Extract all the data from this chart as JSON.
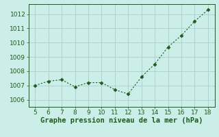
{
  "x": [
    5,
    6,
    7,
    8,
    9,
    10,
    11,
    12,
    13,
    14,
    15,
    16,
    17,
    18
  ],
  "y": [
    1007.0,
    1007.3,
    1007.4,
    1006.9,
    1007.2,
    1007.2,
    1006.7,
    1006.4,
    1007.6,
    1008.5,
    1009.7,
    1010.5,
    1011.5,
    1012.3
  ],
  "xlim": [
    4.5,
    18.5
  ],
  "ylim": [
    1005.5,
    1012.7
  ],
  "yticks": [
    1006,
    1007,
    1008,
    1009,
    1010,
    1011,
    1012
  ],
  "xticks": [
    5,
    6,
    7,
    8,
    9,
    10,
    11,
    12,
    13,
    14,
    15,
    16,
    17,
    18
  ],
  "line_color": "#1a5c1a",
  "marker_color": "#1a5c1a",
  "bg_color": "#cceee8",
  "grid_color": "#aacccc",
  "xlabel": "Graphe pression niveau de la mer (hPa)",
  "xlabel_color": "#1a5c1a",
  "tick_color": "#1a5c1a",
  "axis_fontsize": 6.5,
  "xlabel_fontsize": 7.5
}
